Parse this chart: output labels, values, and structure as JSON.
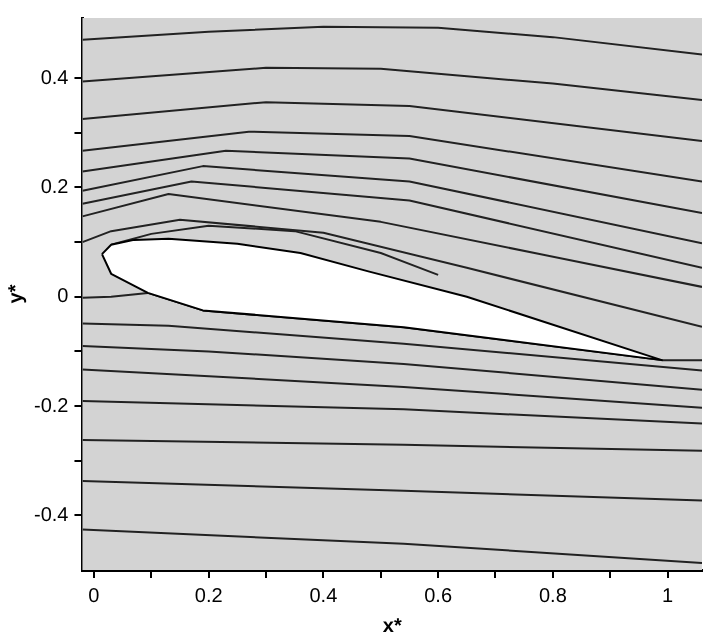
{
  "chart_data": {
    "type": "line",
    "xlabel": "x*",
    "ylabel": "y*",
    "xlim": [
      -0.02,
      1.06
    ],
    "ylim": [
      -0.5,
      0.51
    ],
    "xticks": [
      0,
      {
        "value": 0.1,
        "label": null
      },
      0.2,
      {
        "value": 0.3,
        "label": null
      },
      0.4,
      {
        "value": 0.5,
        "label": null
      },
      0.6,
      {
        "value": 0.7,
        "label": null
      },
      0.8,
      {
        "value": 0.9,
        "label": null
      },
      1
    ],
    "yticks": [
      -0.4,
      {
        "value": -0.3,
        "label": null
      },
      -0.2,
      {
        "value": -0.1,
        "label": null
      },
      0,
      {
        "value": 0.1,
        "label": null
      },
      0.2,
      {
        "value": 0.3,
        "label": null
      },
      0.4
    ],
    "legend": false,
    "marker": "none",
    "line_style": "solid",
    "series": [
      {
        "type": "area",
        "color": "#ffffff",
        "x": [
          0.014,
          0.03,
          0.07,
          0.13,
          0.25,
          0.36,
          0.48,
          0.65,
          0.99,
          0.54,
          0.19,
          0.094,
          0.03,
          0.014
        ],
        "values": [
          0.078,
          0.095,
          0.104,
          0.106,
          0.097,
          0.08,
          0.046,
          0.0,
          -0.116,
          -0.056,
          -0.025,
          0.007,
          0.042,
          0.078
        ]
      },
      {
        "color": "#222222",
        "x": [
          -0.02,
          0.2,
          0.4,
          0.6,
          0.8,
          1.06
        ],
        "values": [
          0.47,
          0.485,
          0.494,
          0.492,
          0.475,
          0.443
        ]
      },
      {
        "color": "#222222",
        "x": [
          -0.02,
          0.3,
          0.5,
          0.8,
          1.06
        ],
        "values": [
          0.394,
          0.419,
          0.417,
          0.39,
          0.36
        ]
      },
      {
        "color": "#222222",
        "x": [
          -0.02,
          0.3,
          0.55,
          1.06
        ],
        "values": [
          0.325,
          0.356,
          0.349,
          0.285
        ]
      },
      {
        "color": "#222222",
        "x": [
          -0.02,
          0.27,
          0.55,
          1.06
        ],
        "values": [
          0.267,
          0.302,
          0.294,
          0.211
        ]
      },
      {
        "color": "#222222",
        "x": [
          -0.02,
          0.23,
          0.55,
          1.06
        ],
        "values": [
          0.229,
          0.267,
          0.253,
          0.153
        ]
      },
      {
        "color": "#222222",
        "x": [
          -0.02,
          0.19,
          0.55,
          1.06
        ],
        "values": [
          0.194,
          0.239,
          0.211,
          0.098
        ]
      },
      {
        "color": "#222222",
        "x": [
          -0.02,
          0.17,
          0.55,
          1.06
        ],
        "values": [
          0.17,
          0.211,
          0.176,
          0.053
        ]
      },
      {
        "color": "#222222",
        "x": [
          -0.02,
          0.13,
          0.5,
          1.06
        ],
        "values": [
          0.147,
          0.188,
          0.137,
          0.018
        ]
      },
      {
        "color": "#222222",
        "x": [
          -0.02,
          0.03,
          0.15,
          0.4,
          0.65,
          1.06
        ],
        "values": [
          0.1,
          0.12,
          0.141,
          0.117,
          0.053,
          -0.055
        ]
      },
      {
        "color": "#222222",
        "x": [
          0.03,
          0.1,
          0.2,
          0.35,
          0.5,
          0.6
        ],
        "values": [
          0.095,
          0.115,
          0.13,
          0.12,
          0.08,
          0.04
        ]
      },
      {
        "color": "#222222",
        "x": [
          -0.02,
          0.03,
          0.094,
          0.19,
          0.54,
          0.99,
          1.06
        ],
        "values": [
          -0.002,
          0.0,
          0.007,
          -0.025,
          -0.056,
          -0.116,
          -0.116
        ]
      },
      {
        "color": "#222222",
        "x": [
          -0.02,
          0.13,
          0.54,
          1.06
        ],
        "values": [
          -0.049,
          -0.053,
          -0.086,
          -0.135
        ]
      },
      {
        "color": "#222222",
        "x": [
          -0.02,
          0.2,
          0.54,
          1.06
        ],
        "values": [
          -0.09,
          -0.1,
          -0.123,
          -0.17
        ]
      },
      {
        "color": "#222222",
        "x": [
          -0.02,
          0.54,
          1.06
        ],
        "values": [
          -0.133,
          -0.165,
          -0.203
        ]
      },
      {
        "color": "#222222",
        "x": [
          -0.02,
          0.54,
          1.06
        ],
        "values": [
          -0.191,
          -0.206,
          -0.232
        ]
      },
      {
        "color": "#222222",
        "x": [
          -0.02,
          0.54,
          1.06
        ],
        "values": [
          -0.262,
          -0.271,
          -0.282
        ]
      },
      {
        "color": "#222222",
        "x": [
          -0.02,
          0.54,
          1.06
        ],
        "values": [
          -0.337,
          -0.355,
          -0.373
        ]
      },
      {
        "color": "#222222",
        "x": [
          -0.02,
          0.54,
          1.06
        ],
        "values": [
          -0.426,
          -0.452,
          -0.487
        ]
      }
    ]
  }
}
